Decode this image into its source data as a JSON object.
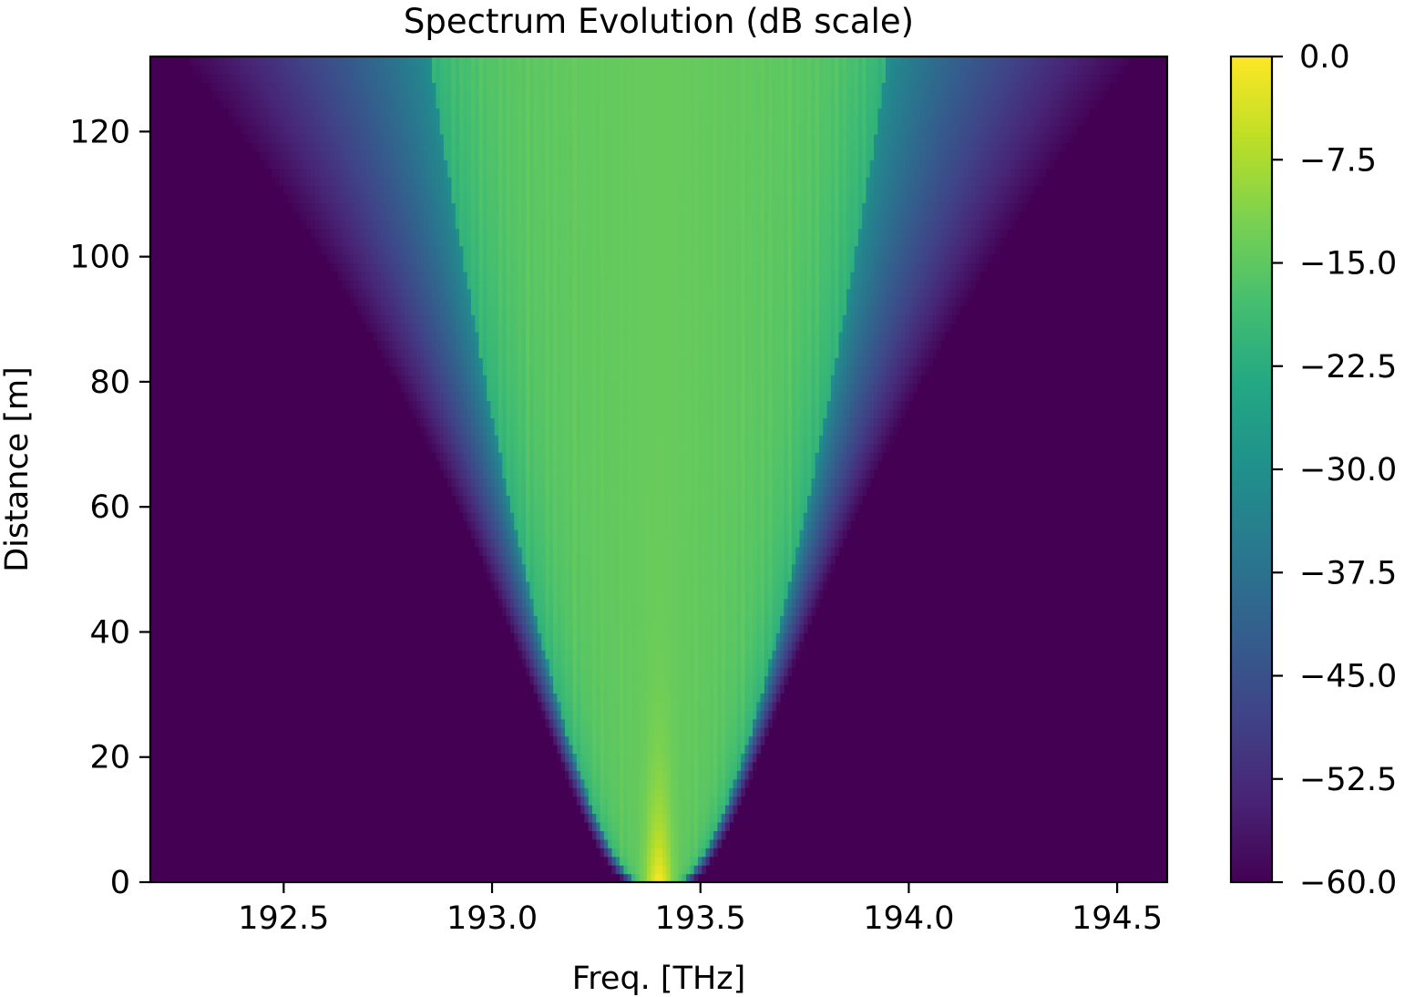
{
  "chart_data": {
    "type": "heatmap",
    "title": "Spectrum Evolution (dB scale)",
    "xlabel": "Freq. [THz]",
    "ylabel": "Distance [m]",
    "xlim": [
      192.18,
      194.62
    ],
    "ylim": [
      0,
      132
    ],
    "x_ticks": [
      192.5,
      193.0,
      193.5,
      194.0,
      194.5
    ],
    "x_tick_labels": [
      "192.5",
      "193.0",
      "193.5",
      "194.0",
      "194.5"
    ],
    "y_ticks": [
      0,
      20,
      40,
      60,
      80,
      100,
      120
    ],
    "y_tick_labels": [
      "0",
      "20",
      "40",
      "60",
      "80",
      "100",
      "120"
    ],
    "colorbar": {
      "colormap": "viridis",
      "range": [
        -60.0,
        0.0
      ],
      "ticks": [
        0.0,
        -7.5,
        -15.0,
        -22.5,
        -30.0,
        -37.5,
        -45.0,
        -52.5,
        -60.0
      ],
      "tick_labels": [
        "0.0",
        "−7.5",
        "−15.0",
        "−22.5",
        "−30.0",
        "−37.5",
        "−45.0",
        "−52.5",
        "−60.0"
      ]
    },
    "spectrum": {
      "center_freq": 193.4,
      "floor_db": -60.0,
      "peak_db": 0.0,
      "plateau_db": -14.0,
      "bright_core_half_width_at_0m": 0.045,
      "bright_edge_half_width_at_132m": 0.55,
      "faint_edge_half_width_at_132m": 1.12
    },
    "grid": false,
    "legend": "none"
  }
}
